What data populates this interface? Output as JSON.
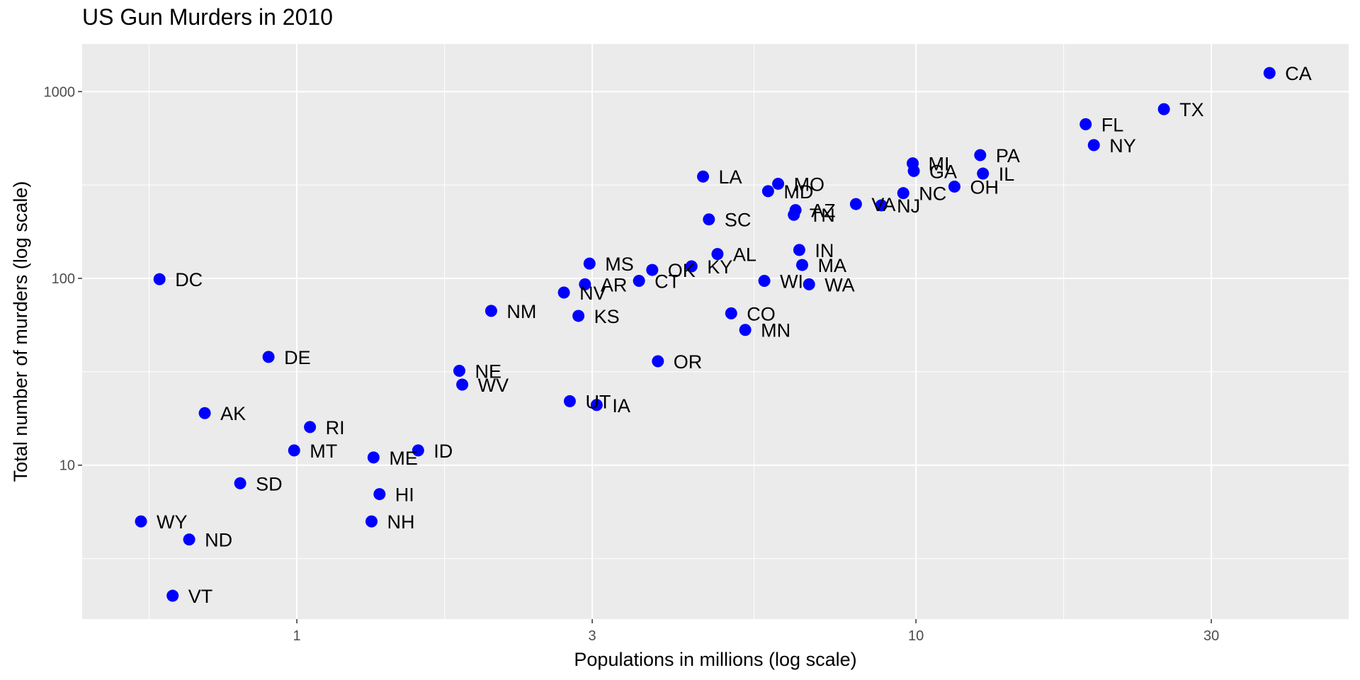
{
  "chart_data": {
    "type": "scatter",
    "title": "US Gun Murders in 2010",
    "xlabel": "Populations in millions (log scale)",
    "ylabel": "Total number of murders (log scale)",
    "x_scale": "log10",
    "y_scale": "log10",
    "xlim": [
      0.45,
      50
    ],
    "ylim": [
      1.5,
      1800
    ],
    "x_ticks": [
      1,
      3,
      10,
      30
    ],
    "x_tick_labels": [
      "1",
      "3",
      "10",
      "30"
    ],
    "y_ticks": [
      10,
      100,
      1000
    ],
    "y_tick_labels": [
      "10",
      "100",
      "1000"
    ],
    "grid": true,
    "point_color": "#0000ff",
    "panel_color": "#ebebeb",
    "points": [
      {
        "label": "CA",
        "x": 37.25,
        "y": 1257
      },
      {
        "label": "TX",
        "x": 25.15,
        "y": 805
      },
      {
        "label": "FL",
        "x": 18.8,
        "y": 669
      },
      {
        "label": "NY",
        "x": 19.38,
        "y": 517
      },
      {
        "label": "PA",
        "x": 12.7,
        "y": 457
      },
      {
        "label": "MI",
        "x": 9.88,
        "y": 413
      },
      {
        "label": "GA",
        "x": 9.92,
        "y": 376
      },
      {
        "label": "IL",
        "x": 12.83,
        "y": 364
      },
      {
        "label": "LA",
        "x": 4.53,
        "y": 351
      },
      {
        "label": "MO",
        "x": 5.99,
        "y": 321
      },
      {
        "label": "MD",
        "x": 5.77,
        "y": 293
      },
      {
        "label": "OH",
        "x": 11.54,
        "y": 310
      },
      {
        "label": "NC",
        "x": 9.54,
        "y": 286
      },
      {
        "label": "VA",
        "x": 8.0,
        "y": 250
      },
      {
        "label": "NJ",
        "x": 8.79,
        "y": 246
      },
      {
        "label": "AZ",
        "x": 6.39,
        "y": 232
      },
      {
        "label": "TN",
        "x": 6.35,
        "y": 219
      },
      {
        "label": "SC",
        "x": 4.63,
        "y": 207
      },
      {
        "label": "IN",
        "x": 6.48,
        "y": 142
      },
      {
        "label": "AL",
        "x": 4.78,
        "y": 135
      },
      {
        "label": "MS",
        "x": 2.97,
        "y": 120
      },
      {
        "label": "MA",
        "x": 6.55,
        "y": 118
      },
      {
        "label": "KY",
        "x": 4.34,
        "y": 116
      },
      {
        "label": "OK",
        "x": 3.75,
        "y": 111
      },
      {
        "label": "DC",
        "x": 0.6,
        "y": 99
      },
      {
        "label": "CT",
        "x": 3.57,
        "y": 97
      },
      {
        "label": "WI",
        "x": 5.69,
        "y": 97
      },
      {
        "label": "AR",
        "x": 2.92,
        "y": 93
      },
      {
        "label": "WA",
        "x": 6.72,
        "y": 93
      },
      {
        "label": "NV",
        "x": 2.7,
        "y": 84
      },
      {
        "label": "NM",
        "x": 2.06,
        "y": 67
      },
      {
        "label": "CO",
        "x": 5.03,
        "y": 65
      },
      {
        "label": "KS",
        "x": 2.85,
        "y": 63
      },
      {
        "label": "MN",
        "x": 5.3,
        "y": 53
      },
      {
        "label": "DE",
        "x": 0.9,
        "y": 38
      },
      {
        "label": "OR",
        "x": 3.83,
        "y": 36
      },
      {
        "label": "NE",
        "x": 1.83,
        "y": 32
      },
      {
        "label": "WV",
        "x": 1.85,
        "y": 27
      },
      {
        "label": "UT",
        "x": 2.76,
        "y": 22
      },
      {
        "label": "IA",
        "x": 3.05,
        "y": 21
      },
      {
        "label": "AK",
        "x": 0.71,
        "y": 19
      },
      {
        "label": "RI",
        "x": 1.05,
        "y": 16
      },
      {
        "label": "MT",
        "x": 0.99,
        "y": 12
      },
      {
        "label": "ID",
        "x": 1.57,
        "y": 12
      },
      {
        "label": "ME",
        "x": 1.33,
        "y": 11
      },
      {
        "label": "SD",
        "x": 0.81,
        "y": 8
      },
      {
        "label": "HI",
        "x": 1.36,
        "y": 7
      },
      {
        "label": "WY",
        "x": 0.56,
        "y": 5
      },
      {
        "label": "NH",
        "x": 1.32,
        "y": 5
      },
      {
        "label": "ND",
        "x": 0.67,
        "y": 4
      },
      {
        "label": "VT",
        "x": 0.63,
        "y": 2
      }
    ]
  }
}
